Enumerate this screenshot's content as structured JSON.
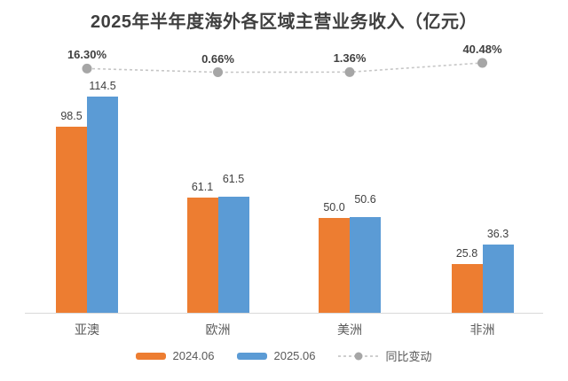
{
  "title": "2025年半年度海外各区域主营业务收入（亿元）",
  "colors": {
    "bar_2024": "#ED7D31",
    "bar_2025": "#5B9BD5",
    "line": "#C6C6C6",
    "marker": "#A6A6A6",
    "title_text": "#3F3F3F",
    "label_text": "#404040",
    "category_text": "#595959",
    "axis_line": "#D9D9D9"
  },
  "chart_data": {
    "type": "bar",
    "subtype": "combo-bar-line",
    "title": "2025年半年度海外各区域主营业务收入（亿元）",
    "categories": [
      "亚澳",
      "欧洲",
      "美洲",
      "非洲"
    ],
    "series": [
      {
        "name": "2024.06",
        "type": "bar",
        "color": "#ED7D31",
        "values": [
          98.5,
          61.1,
          50.0,
          25.8
        ]
      },
      {
        "name": "2025.06",
        "type": "bar",
        "color": "#5B9BD5",
        "values": [
          114.5,
          61.5,
          50.6,
          36.3
        ]
      },
      {
        "name": "同比变动",
        "type": "line",
        "color": "#A6A6A6",
        "line_style": "dashed",
        "values_pct": [
          16.3,
          0.66,
          1.36,
          40.48
        ]
      }
    ],
    "xlabel": "",
    "ylabel": "",
    "ylim": [
      0,
      140
    ],
    "secondary_axis": "percent",
    "grid": false,
    "data_labels": true,
    "legend_position": "bottom"
  }
}
